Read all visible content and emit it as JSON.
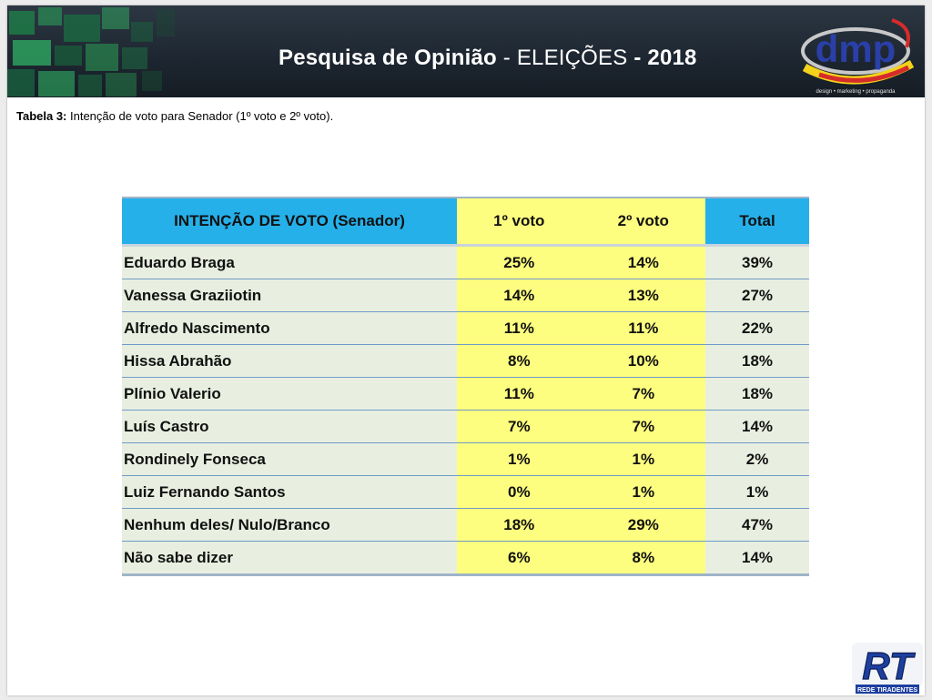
{
  "header": {
    "title_part1": "Pesquisa de Opinião",
    "title_sep1": " - ",
    "title_part2": "ELEIÇÕES",
    "title_sep2": " - ",
    "title_year": "2018",
    "logo_text": "dmp",
    "logo_tagline": "design • marketing • propaganda"
  },
  "caption": {
    "label": "Tabela 3:",
    "text": " Intenção de voto para Senador (1º voto e 2º voto)."
  },
  "table": {
    "headers": [
      "INTENÇÃO DE VOTO (Senador)",
      "1º voto",
      "2º voto",
      "Total"
    ],
    "rows": [
      [
        "Eduardo Braga",
        "25%",
        "14%",
        "39%"
      ],
      [
        "Vanessa Graziiotin",
        "14%",
        "13%",
        "27%"
      ],
      [
        "Alfredo Nascimento",
        "11%",
        "11%",
        "22%"
      ],
      [
        "Hissa Abrahão",
        "8%",
        "10%",
        "18%"
      ],
      [
        "Plínio Valerio",
        "11%",
        "7%",
        "18%"
      ],
      [
        "Luís Castro",
        "7%",
        "7%",
        "14%"
      ],
      [
        "Rondinely Fonseca",
        "1%",
        "1%",
        "2%"
      ],
      [
        "Luiz Fernando Santos",
        "0%",
        "1%",
        "1%"
      ],
      [
        "Nenhum deles/ Nulo/Branco",
        "18%",
        "29%",
        "47%"
      ],
      [
        "Não sabe dizer",
        "6%",
        "8%",
        "14%"
      ]
    ]
  },
  "footer": {
    "logo_letters": "RT",
    "logo_caption": "REDE TIRADENTES"
  },
  "colors": {
    "header_cell": "#25b0ea",
    "vote_column": "#fdfd7f",
    "name_column": "#e8efe0",
    "row_divider": "#6f9bc9",
    "banner": "#1d2630"
  }
}
